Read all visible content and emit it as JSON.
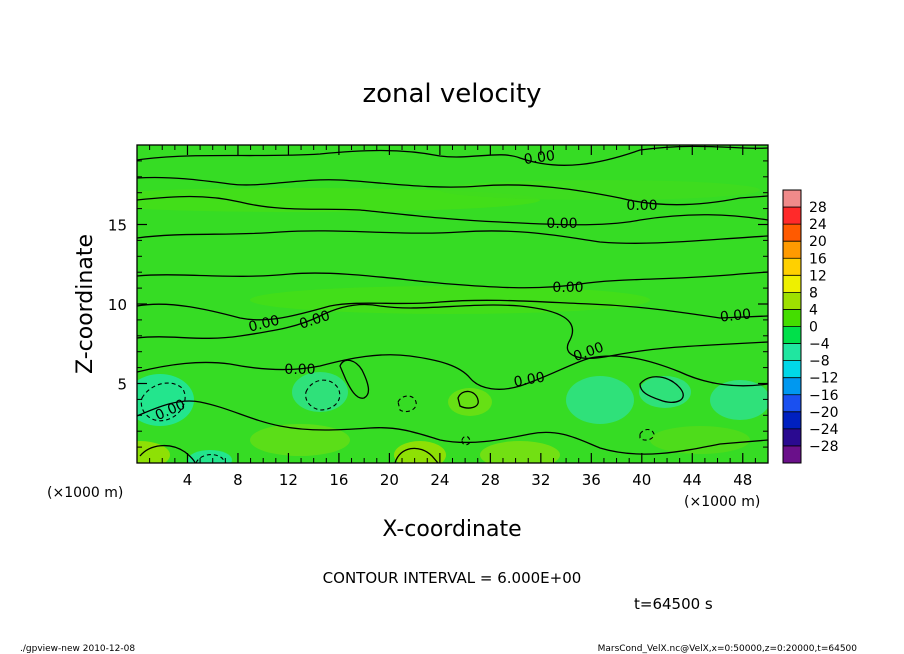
{
  "chart_data": {
    "type": "heatmap",
    "title": "zonal velocity",
    "xlabel": "X-coordinate",
    "ylabel": "Z-coordinate",
    "x_unit_label": "(×1000 m)",
    "y_unit_label": "(×1000 m)",
    "x_ticks": [
      4,
      8,
      12,
      16,
      20,
      24,
      28,
      32,
      36,
      40,
      44,
      48
    ],
    "y_ticks": [
      5,
      10,
      15
    ],
    "xlim": [
      0,
      50
    ],
    "ylim": [
      0,
      20
    ],
    "contour_line_label": "0.00",
    "colorbar": {
      "levels": [
        28,
        24,
        20,
        16,
        12,
        8,
        4,
        0,
        -4,
        -8,
        -12,
        -16,
        -20,
        -24,
        -28
      ],
      "level_labels": [
        "28",
        "24",
        "20",
        "16",
        "12",
        "8",
        "4",
        "0",
        "−4",
        "−8",
        "−12",
        "−16",
        "−20",
        "−24",
        "−28"
      ],
      "colors": [
        "#f08a8a",
        "#ff2a2a",
        "#ff5a00",
        "#ff9a00",
        "#ffd000",
        "#eef000",
        "#9ee000",
        "#44dd00",
        "#00e04a",
        "#20e6a0",
        "#00d8e8",
        "#0098f0",
        "#1a50f0",
        "#0020c0",
        "#2a0a90",
        "#6a108a"
      ]
    },
    "contour_interval_text": "CONTOUR INTERVAL = 6.000E+00",
    "time_text": "t=64500 s"
  },
  "footer": {
    "left": "./gpview-new   2010-12-08",
    "right": "MarsCond_VelX.nc@VelX,x=0:50000,z=0:20000,t=64500"
  }
}
